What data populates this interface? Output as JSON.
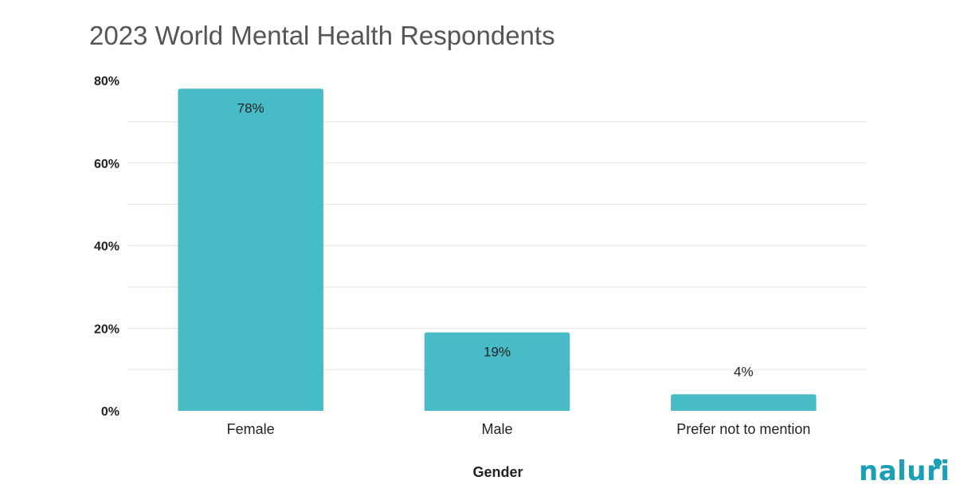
{
  "chart_data": {
    "type": "bar",
    "title": "2023 World Mental Health Respondents",
    "xlabel": "Gender",
    "ylabel": "",
    "categories": [
      "Female",
      "Male",
      "Prefer not to mention"
    ],
    "values": [
      78,
      19,
      4
    ],
    "data_labels": [
      "78%",
      "19%",
      "4%"
    ],
    "yticks": [
      "0%",
      "20%",
      "40%",
      "60%",
      "80%"
    ],
    "ytick_values": [
      0,
      20,
      40,
      60,
      80
    ],
    "ylim": [
      0,
      80
    ],
    "grid": true,
    "legend": "none",
    "bar_color": "#48bcc6"
  },
  "brand": {
    "logo_text": "naluri",
    "color": "#1a9fb7"
  }
}
